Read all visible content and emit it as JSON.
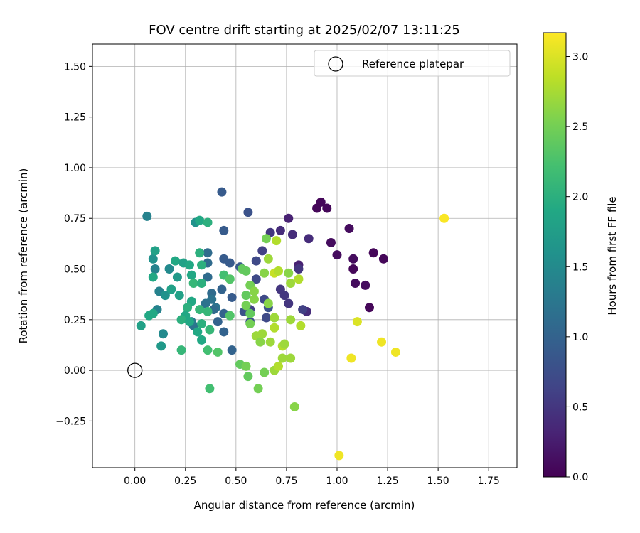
{
  "chart_data": {
    "type": "scatter",
    "title": "FOV centre drift starting at 2025/02/07 13:11:25",
    "xlabel": "Angular distance from reference (arcmin)",
    "ylabel": "Rotation from reference (arcmin)",
    "xlim": [
      -0.21,
      1.89
    ],
    "ylim": [
      -0.48,
      1.61
    ],
    "xticks": [
      0.0,
      0.25,
      0.5,
      0.75,
      1.0,
      1.25,
      1.5,
      1.75
    ],
    "xtick_labels": [
      "0.00",
      "0.25",
      "0.50",
      "0.75",
      "1.00",
      "1.25",
      "1.50",
      "1.75"
    ],
    "yticks": [
      -0.25,
      0.0,
      0.25,
      0.5,
      0.75,
      1.0,
      1.25,
      1.5
    ],
    "ytick_labels": [
      "−0.25",
      "0.00",
      "0.25",
      "0.50",
      "0.75",
      "1.00",
      "1.25",
      "1.50"
    ],
    "grid": true,
    "legend": {
      "location": "top-right",
      "label": "Reference platepar"
    },
    "reference_point": {
      "x": 0.0,
      "y": 0.0
    },
    "colorbar": {
      "label": "Hours from first FF file",
      "range": [
        0.0,
        3.17
      ],
      "ticks": [
        0.0,
        0.5,
        1.0,
        1.5,
        2.0,
        2.5,
        3.0
      ],
      "tick_labels": [
        "0.0",
        "0.5",
        "1.0",
        "1.5",
        "2.0",
        "2.5",
        "3.0"
      ],
      "colormap": "viridis"
    },
    "points": [
      {
        "x": 0.92,
        "y": 0.83,
        "c": 0.05
      },
      {
        "x": 0.9,
        "y": 0.8,
        "c": 0.05
      },
      {
        "x": 0.95,
        "y": 0.8,
        "c": 0.05
      },
      {
        "x": 1.06,
        "y": 0.7,
        "c": 0.1
      },
      {
        "x": 0.97,
        "y": 0.63,
        "c": 0.1
      },
      {
        "x": 1.0,
        "y": 0.57,
        "c": 0.1
      },
      {
        "x": 1.08,
        "y": 0.55,
        "c": 0.1
      },
      {
        "x": 1.18,
        "y": 0.58,
        "c": 0.05
      },
      {
        "x": 1.23,
        "y": 0.55,
        "c": 0.05
      },
      {
        "x": 1.08,
        "y": 0.5,
        "c": 0.05
      },
      {
        "x": 1.09,
        "y": 0.43,
        "c": 0.1
      },
      {
        "x": 1.14,
        "y": 0.42,
        "c": 0.1
      },
      {
        "x": 1.16,
        "y": 0.31,
        "c": 0.05
      },
      {
        "x": 0.76,
        "y": 0.75,
        "c": 0.3
      },
      {
        "x": 0.72,
        "y": 0.69,
        "c": 0.4
      },
      {
        "x": 0.78,
        "y": 0.67,
        "c": 0.4
      },
      {
        "x": 0.86,
        "y": 0.65,
        "c": 0.4
      },
      {
        "x": 0.81,
        "y": 0.52,
        "c": 0.3
      },
      {
        "x": 0.81,
        "y": 0.5,
        "c": 0.5
      },
      {
        "x": 0.72,
        "y": 0.4,
        "c": 0.5
      },
      {
        "x": 0.74,
        "y": 0.37,
        "c": 0.5
      },
      {
        "x": 0.76,
        "y": 0.33,
        "c": 0.5
      },
      {
        "x": 0.85,
        "y": 0.29,
        "c": 0.4
      },
      {
        "x": 0.83,
        "y": 0.3,
        "c": 0.6
      },
      {
        "x": 0.67,
        "y": 0.68,
        "c": 0.5
      },
      {
        "x": 0.63,
        "y": 0.59,
        "c": 0.6
      },
      {
        "x": 0.6,
        "y": 0.54,
        "c": 0.7
      },
      {
        "x": 0.6,
        "y": 0.45,
        "c": 0.7
      },
      {
        "x": 0.64,
        "y": 0.35,
        "c": 0.7
      },
      {
        "x": 0.66,
        "y": 0.31,
        "c": 0.8
      },
      {
        "x": 0.65,
        "y": 0.26,
        "c": 0.7
      },
      {
        "x": 0.57,
        "y": 0.3,
        "c": 0.6
      },
      {
        "x": 0.54,
        "y": 0.29,
        "c": 0.8
      },
      {
        "x": 0.56,
        "y": 0.78,
        "c": 0.8
      },
      {
        "x": 0.43,
        "y": 0.88,
        "c": 0.9
      },
      {
        "x": 0.44,
        "y": 0.69,
        "c": 0.9
      },
      {
        "x": 0.44,
        "y": 0.55,
        "c": 0.9
      },
      {
        "x": 0.47,
        "y": 0.53,
        "c": 0.9
      },
      {
        "x": 0.52,
        "y": 0.51,
        "c": 0.9
      },
      {
        "x": 0.48,
        "y": 0.36,
        "c": 0.9
      },
      {
        "x": 0.43,
        "y": 0.4,
        "c": 1.0
      },
      {
        "x": 0.44,
        "y": 0.28,
        "c": 1.0
      },
      {
        "x": 0.41,
        "y": 0.24,
        "c": 1.0
      },
      {
        "x": 0.44,
        "y": 0.19,
        "c": 1.0
      },
      {
        "x": 0.48,
        "y": 0.1,
        "c": 1.0
      },
      {
        "x": 0.57,
        "y": 0.24,
        "c": 0.8
      },
      {
        "x": 0.36,
        "y": 0.58,
        "c": 1.1
      },
      {
        "x": 0.36,
        "y": 0.53,
        "c": 1.1
      },
      {
        "x": 0.36,
        "y": 0.46,
        "c": 1.1
      },
      {
        "x": 0.38,
        "y": 0.38,
        "c": 1.1
      },
      {
        "x": 0.38,
        "y": 0.35,
        "c": 1.2
      },
      {
        "x": 0.4,
        "y": 0.31,
        "c": 1.2
      },
      {
        "x": 0.39,
        "y": 0.3,
        "c": 1.1
      },
      {
        "x": 0.35,
        "y": 0.33,
        "c": 1.2
      },
      {
        "x": 0.29,
        "y": 0.22,
        "c": 1.2
      },
      {
        "x": 0.28,
        "y": 0.24,
        "c": 1.3
      },
      {
        "x": 0.06,
        "y": 0.76,
        "c": 1.4
      },
      {
        "x": 0.09,
        "y": 0.55,
        "c": 1.6
      },
      {
        "x": 0.1,
        "y": 0.5,
        "c": 1.4
      },
      {
        "x": 0.17,
        "y": 0.5,
        "c": 1.5
      },
      {
        "x": 0.12,
        "y": 0.39,
        "c": 1.4
      },
      {
        "x": 0.15,
        "y": 0.37,
        "c": 1.6
      },
      {
        "x": 0.11,
        "y": 0.3,
        "c": 1.4
      },
      {
        "x": 0.14,
        "y": 0.18,
        "c": 1.5
      },
      {
        "x": 0.13,
        "y": 0.12,
        "c": 1.7
      },
      {
        "x": 0.03,
        "y": 0.22,
        "c": 1.8
      },
      {
        "x": 0.07,
        "y": 0.27,
        "c": 1.9
      },
      {
        "x": 0.09,
        "y": 0.28,
        "c": 1.9
      },
      {
        "x": 0.09,
        "y": 0.46,
        "c": 1.9
      },
      {
        "x": 0.1,
        "y": 0.59,
        "c": 1.8
      },
      {
        "x": 0.21,
        "y": 0.46,
        "c": 1.7
      },
      {
        "x": 0.18,
        "y": 0.4,
        "c": 1.8
      },
      {
        "x": 0.22,
        "y": 0.37,
        "c": 1.8
      },
      {
        "x": 0.2,
        "y": 0.54,
        "c": 1.9
      },
      {
        "x": 0.24,
        "y": 0.53,
        "c": 1.8
      },
      {
        "x": 0.27,
        "y": 0.52,
        "c": 1.9
      },
      {
        "x": 0.3,
        "y": 0.73,
        "c": 1.6
      },
      {
        "x": 0.32,
        "y": 0.74,
        "c": 1.9
      },
      {
        "x": 0.36,
        "y": 0.73,
        "c": 2.0
      },
      {
        "x": 0.32,
        "y": 0.58,
        "c": 2.0
      },
      {
        "x": 0.28,
        "y": 0.47,
        "c": 1.9
      },
      {
        "x": 0.33,
        "y": 0.52,
        "c": 2.0
      },
      {
        "x": 0.29,
        "y": 0.43,
        "c": 2.1
      },
      {
        "x": 0.33,
        "y": 0.43,
        "c": 2.0
      },
      {
        "x": 0.28,
        "y": 0.34,
        "c": 1.9
      },
      {
        "x": 0.26,
        "y": 0.31,
        "c": 2.0
      },
      {
        "x": 0.25,
        "y": 0.27,
        "c": 1.9
      },
      {
        "x": 0.23,
        "y": 0.25,
        "c": 2.0
      },
      {
        "x": 0.27,
        "y": 0.24,
        "c": 1.9
      },
      {
        "x": 0.31,
        "y": 0.19,
        "c": 1.9
      },
      {
        "x": 0.33,
        "y": 0.15,
        "c": 1.9
      },
      {
        "x": 0.33,
        "y": 0.23,
        "c": 2.0
      },
      {
        "x": 0.36,
        "y": 0.29,
        "c": 2.1
      },
      {
        "x": 0.37,
        "y": 0.2,
        "c": 2.1
      },
      {
        "x": 0.32,
        "y": 0.3,
        "c": 2.1
      },
      {
        "x": 0.23,
        "y": 0.1,
        "c": 2.1
      },
      {
        "x": 0.36,
        "y": 0.1,
        "c": 2.2
      },
      {
        "x": 0.41,
        "y": 0.09,
        "c": 2.3
      },
      {
        "x": 0.37,
        "y": -0.09,
        "c": 2.2
      },
      {
        "x": 0.44,
        "y": 0.47,
        "c": 2.2
      },
      {
        "x": 0.47,
        "y": 0.45,
        "c": 2.3
      },
      {
        "x": 0.47,
        "y": 0.27,
        "c": 2.3
      },
      {
        "x": 0.53,
        "y": 0.5,
        "c": 2.4
      },
      {
        "x": 0.55,
        "y": 0.49,
        "c": 2.4
      },
      {
        "x": 0.57,
        "y": 0.42,
        "c": 2.5
      },
      {
        "x": 0.55,
        "y": 0.37,
        "c": 2.4
      },
      {
        "x": 0.59,
        "y": 0.39,
        "c": 2.6
      },
      {
        "x": 0.59,
        "y": 0.35,
        "c": 2.6
      },
      {
        "x": 0.55,
        "y": 0.32,
        "c": 2.5
      },
      {
        "x": 0.57,
        "y": 0.28,
        "c": 2.4
      },
      {
        "x": 0.57,
        "y": 0.23,
        "c": 2.5
      },
      {
        "x": 0.6,
        "y": 0.17,
        "c": 2.7
      },
      {
        "x": 0.62,
        "y": 0.14,
        "c": 2.6
      },
      {
        "x": 0.63,
        "y": 0.18,
        "c": 2.7
      },
      {
        "x": 0.52,
        "y": 0.03,
        "c": 2.4
      },
      {
        "x": 0.55,
        "y": 0.02,
        "c": 2.5
      },
      {
        "x": 0.56,
        "y": -0.03,
        "c": 2.4
      },
      {
        "x": 0.61,
        "y": -0.09,
        "c": 2.5
      },
      {
        "x": 0.64,
        "y": -0.01,
        "c": 2.5
      },
      {
        "x": 0.67,
        "y": 0.14,
        "c": 2.7
      },
      {
        "x": 0.69,
        "y": 0.0,
        "c": 2.7
      },
      {
        "x": 0.71,
        "y": 0.02,
        "c": 2.8
      },
      {
        "x": 0.73,
        "y": 0.06,
        "c": 2.7
      },
      {
        "x": 0.77,
        "y": 0.06,
        "c": 2.7
      },
      {
        "x": 0.73,
        "y": 0.12,
        "c": 2.8
      },
      {
        "x": 0.74,
        "y": 0.13,
        "c": 2.7
      },
      {
        "x": 0.69,
        "y": 0.21,
        "c": 2.8
      },
      {
        "x": 0.69,
        "y": 0.26,
        "c": 2.7
      },
      {
        "x": 0.64,
        "y": 0.48,
        "c": 2.6
      },
      {
        "x": 0.69,
        "y": 0.48,
        "c": 2.9
      },
      {
        "x": 0.71,
        "y": 0.49,
        "c": 2.8
      },
      {
        "x": 0.65,
        "y": 0.65,
        "c": 2.5
      },
      {
        "x": 0.66,
        "y": 0.55,
        "c": 2.7
      },
      {
        "x": 0.7,
        "y": 0.64,
        "c": 2.8
      },
      {
        "x": 0.76,
        "y": 0.48,
        "c": 2.6
      },
      {
        "x": 0.77,
        "y": 0.43,
        "c": 2.7
      },
      {
        "x": 0.81,
        "y": 0.45,
        "c": 2.8
      },
      {
        "x": 0.77,
        "y": 0.25,
        "c": 2.7
      },
      {
        "x": 0.82,
        "y": 0.22,
        "c": 2.8
      },
      {
        "x": 0.79,
        "y": -0.18,
        "c": 2.6
      },
      {
        "x": 0.66,
        "y": 0.33,
        "c": 2.6
      },
      {
        "x": 1.1,
        "y": 0.24,
        "c": 3.0
      },
      {
        "x": 1.07,
        "y": 0.06,
        "c": 3.1
      },
      {
        "x": 1.22,
        "y": 0.14,
        "c": 3.1
      },
      {
        "x": 1.29,
        "y": 0.09,
        "c": 3.1
      },
      {
        "x": 1.53,
        "y": 0.75,
        "c": 3.15
      },
      {
        "x": 1.01,
        "y": -0.42,
        "c": 3.1
      }
    ]
  }
}
